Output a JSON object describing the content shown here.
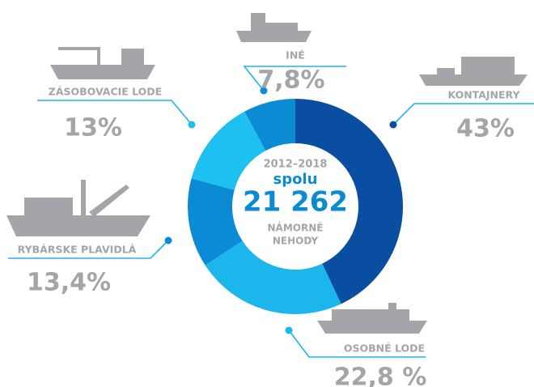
{
  "chart_data": {
    "type": "donut",
    "categories": [
      "KONTAJNERY",
      "OSOBNÉ LODE",
      "RYBÁRSKE PLAVIDLÁ",
      "ZÁSOBOVACIE LODE",
      "INÉ"
    ],
    "values": [
      43,
      22.8,
      13.4,
      13,
      7.8
    ],
    "value_labels": [
      "43%",
      "22,8 %",
      "13,4%",
      "13%",
      "7,8%"
    ],
    "colors": [
      "#0a4ea2",
      "#1cb5ec",
      "#0b8bd3",
      "#1ec0f0",
      "#0b8bd3"
    ],
    "center": {
      "period": "2012–2018",
      "word": "spolu",
      "total": "21 262",
      "line1": "NÁMORNÉ",
      "line2": "NEHODY"
    }
  }
}
